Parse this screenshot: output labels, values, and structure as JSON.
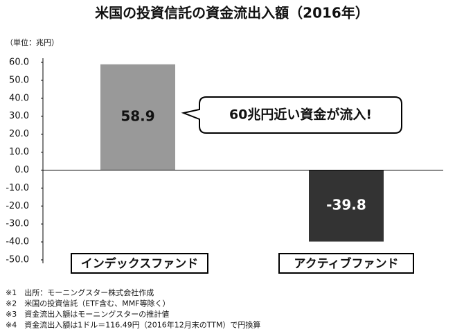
{
  "chart_data": {
    "type": "bar",
    "title": "米国の投資信託の資金流出入額（2016年）",
    "unit_label": "（単位：兆円）",
    "categories": [
      "インデックスファンド",
      "アクティブファンド"
    ],
    "values": [
      58.9,
      -39.8
    ],
    "colors": [
      "#999999",
      "#333333"
    ],
    "ylim": [
      -50,
      60
    ],
    "yticks": [
      {
        "value": 60,
        "label": "60.0"
      },
      {
        "value": 50,
        "label": "50.0"
      },
      {
        "value": 40,
        "label": "40.0"
      },
      {
        "value": 30,
        "label": "30.0"
      },
      {
        "value": 20,
        "label": "20.0"
      },
      {
        "value": 10,
        "label": "10.0"
      },
      {
        "value": 0,
        "label": "0.0"
      },
      {
        "value": -10,
        "label": "-10.0"
      },
      {
        "value": -20,
        "label": "-20.0"
      },
      {
        "value": -30,
        "label": "-30.0"
      },
      {
        "value": -40,
        "label": "-40.0"
      },
      {
        "value": -50,
        "label": "-50.0"
      }
    ],
    "annotation": "60兆円近い資金が流入!",
    "notes": [
      "※1　出所：モーニングスター株式会社作成",
      "※2　米国の投資信託（ETF含む、MMF等除く）",
      "※3　資金流出入額はモーニングスターの推計値",
      "※4　資金流出入額は1ドル＝116.49円（2016年12月末のTTM）で円換算"
    ]
  }
}
